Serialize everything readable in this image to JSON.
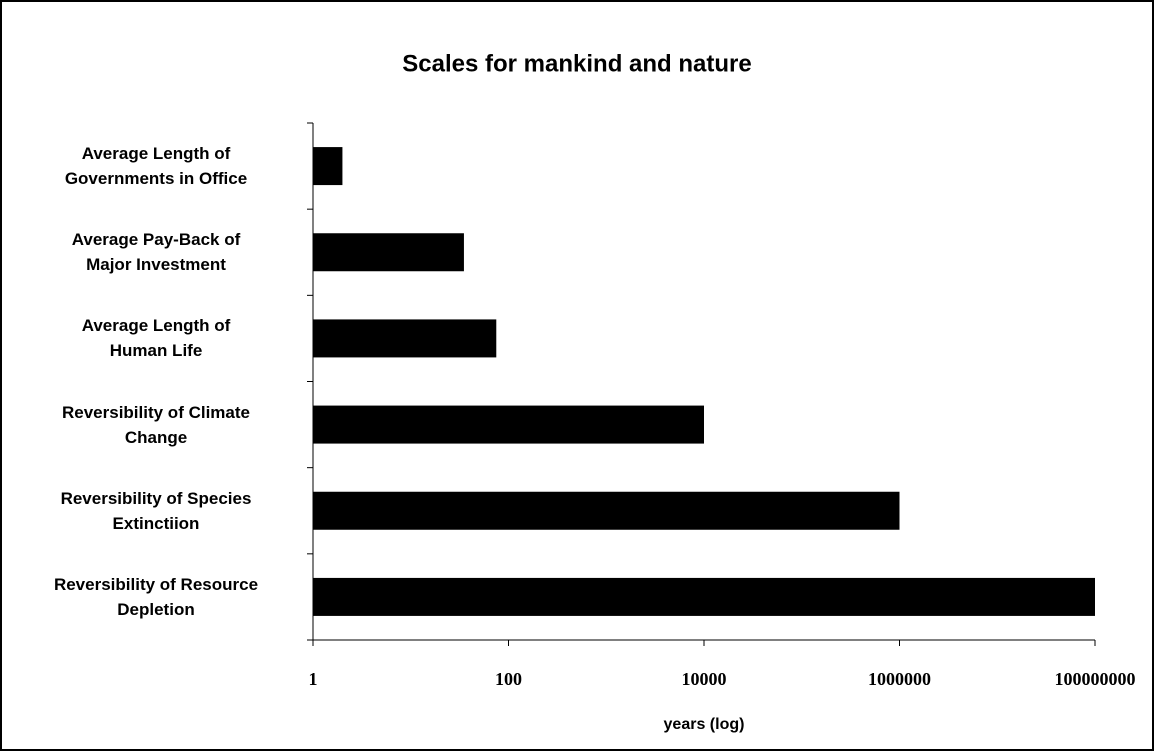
{
  "chart_data": {
    "type": "barh",
    "title": "Scales for mankind and nature",
    "categories": [
      "Average Length of\nGovernments in Office",
      "Average Pay-Back of\nMajor Investment",
      "Average Length of\nHuman Life",
      "Reversibility of Climate\nChange",
      "Reversibility of Species\nExtinctiion",
      "Reversibility of Resource\nDepletion"
    ],
    "values": [
      2,
      35,
      75,
      10000,
      1000000,
      100000000
    ],
    "color": "#000000",
    "xlabel": "years (log)",
    "xscale": "log",
    "xlim": [
      1,
      100000000
    ],
    "xticks": [
      1,
      100,
      10000,
      1000000,
      100000000
    ]
  }
}
